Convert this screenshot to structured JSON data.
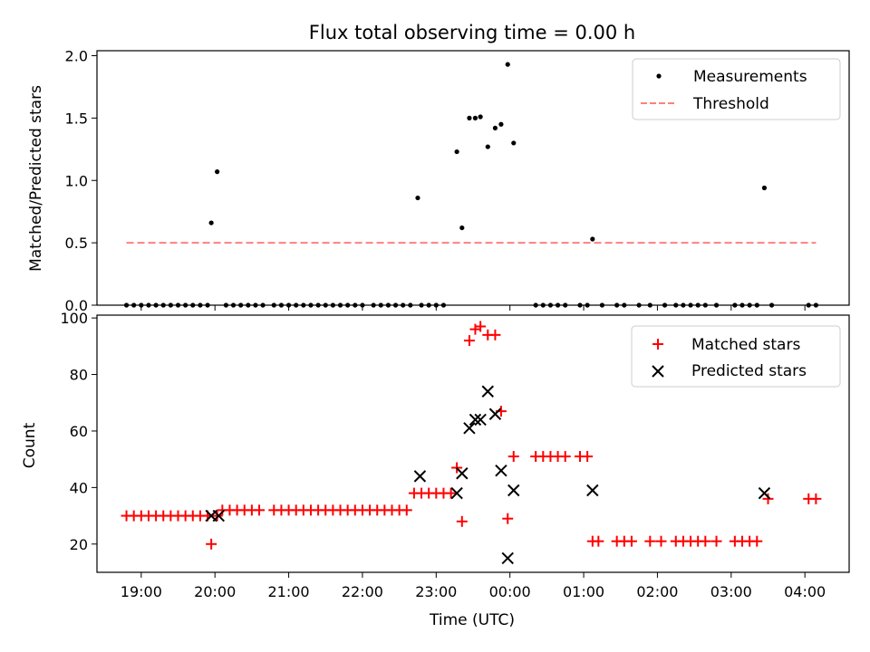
{
  "chart_data": [
    {
      "type": "scatter",
      "title": "Flux total observing time = 0.00 h",
      "xlabel": "",
      "ylabel": "Matched/Predicted stars",
      "ylim": [
        0,
        2.04
      ],
      "yticks": [
        "0.0",
        "0.5",
        "1.0",
        "1.5",
        "2.0"
      ],
      "ytick_values": [
        0,
        0.5,
        1.0,
        1.5,
        2.0
      ],
      "legend_position": "top-right",
      "grid": false,
      "series": [
        {
          "name": "Measurements",
          "marker": "dot",
          "color": "#000000",
          "x": [
            18.8,
            18.9,
            19.0,
            19.1,
            19.2,
            19.3,
            19.4,
            19.5,
            19.6,
            19.7,
            19.8,
            19.9,
            19.95,
            20.03,
            20.15,
            20.25,
            20.35,
            20.45,
            20.55,
            20.65,
            20.8,
            20.9,
            21.0,
            21.1,
            21.2,
            21.3,
            21.4,
            21.5,
            21.6,
            21.7,
            21.8,
            21.9,
            22.0,
            22.15,
            22.25,
            22.35,
            22.45,
            22.55,
            22.65,
            22.75,
            22.8,
            22.9,
            23.0,
            23.1,
            23.28,
            23.35,
            23.45,
            23.53,
            23.6,
            23.7,
            23.8,
            23.88,
            23.97,
            24.05,
            24.35,
            24.45,
            24.55,
            24.65,
            24.75,
            24.95,
            25.05,
            25.12,
            25.25,
            25.45,
            25.55,
            25.75,
            25.9,
            26.1,
            26.25,
            26.35,
            26.45,
            26.55,
            26.65,
            26.8,
            27.05,
            27.15,
            27.25,
            27.35,
            27.45,
            27.55,
            28.05,
            28.15
          ],
          "y": [
            0,
            0,
            0,
            0,
            0,
            0,
            0,
            0,
            0,
            0,
            0,
            0,
            0.66,
            1.07,
            0,
            0,
            0,
            0,
            0,
            0,
            0,
            0,
            0,
            0,
            0,
            0,
            0,
            0,
            0,
            0,
            0,
            0,
            0,
            0,
            0,
            0,
            0,
            0,
            0,
            0.86,
            0,
            0,
            0,
            0,
            1.23,
            0.62,
            1.5,
            1.5,
            1.51,
            1.27,
            1.42,
            1.45,
            1.93,
            1.3,
            0,
            0,
            0,
            0,
            0,
            0,
            0,
            0.53,
            0,
            0,
            0,
            0,
            0,
            0,
            0,
            0,
            0,
            0,
            0,
            0,
            0,
            0,
            0,
            0,
            0.94,
            0,
            0,
            0
          ]
        },
        {
          "name": "Threshold",
          "marker": "dashed-line",
          "color": "#ff7f7f",
          "x": [
            18.8,
            28.15
          ],
          "y": [
            0.5,
            0.5
          ]
        }
      ]
    },
    {
      "type": "scatter",
      "title": "",
      "xlabel": "Time (UTC)",
      "ylabel": "Count",
      "ylim": [
        10,
        101
      ],
      "yticks": [
        "20",
        "40",
        "60",
        "80",
        "100"
      ],
      "ytick_values": [
        20,
        40,
        60,
        80,
        100
      ],
      "xlim": [
        18.4,
        28.6
      ],
      "xticks": [
        "19:00",
        "20:00",
        "21:00",
        "22:00",
        "23:00",
        "00:00",
        "01:00",
        "02:00",
        "03:00",
        "04:00"
      ],
      "xtick_values": [
        19,
        20,
        21,
        22,
        23,
        24,
        25,
        26,
        27,
        28
      ],
      "legend_position": "top-right",
      "grid": false,
      "series": [
        {
          "name": "Matched stars",
          "marker": "plus",
          "color": "#ff0000",
          "x": [
            18.8,
            18.9,
            19.0,
            19.1,
            19.2,
            19.3,
            19.4,
            19.5,
            19.6,
            19.7,
            19.8,
            19.9,
            19.95,
            20.03,
            20.1,
            20.2,
            20.3,
            20.4,
            20.5,
            20.6,
            20.8,
            20.9,
            21.0,
            21.1,
            21.2,
            21.3,
            21.4,
            21.5,
            21.6,
            21.7,
            21.8,
            21.9,
            22.0,
            22.1,
            22.2,
            22.3,
            22.4,
            22.5,
            22.6,
            22.7,
            22.8,
            22.9,
            23.0,
            23.1,
            23.2,
            23.28,
            23.35,
            23.45,
            23.53,
            23.6,
            23.7,
            23.8,
            23.88,
            23.97,
            24.05,
            24.35,
            24.45,
            24.55,
            24.65,
            24.75,
            24.95,
            25.05,
            25.12,
            25.2,
            25.45,
            25.55,
            25.65,
            25.9,
            26.05,
            26.25,
            26.35,
            26.45,
            26.55,
            26.65,
            26.8,
            27.05,
            27.15,
            27.25,
            27.35,
            27.5,
            28.05,
            28.15
          ],
          "y": [
            30,
            30,
            30,
            30,
            30,
            30,
            30,
            30,
            30,
            30,
            30,
            30,
            20,
            30,
            32,
            32,
            32,
            32,
            32,
            32,
            32,
            32,
            32,
            32,
            32,
            32,
            32,
            32,
            32,
            32,
            32,
            32,
            32,
            32,
            32,
            32,
            32,
            32,
            32,
            38,
            38,
            38,
            38,
            38,
            38,
            47,
            28,
            92,
            96,
            97,
            94,
            94,
            67,
            29,
            51,
            51,
            51,
            51,
            51,
            51,
            51,
            51,
            21,
            21,
            21,
            21,
            21,
            21,
            21,
            21,
            21,
            21,
            21,
            21,
            21,
            21,
            21,
            21,
            21,
            36,
            36,
            36
          ]
        },
        {
          "name": "Predicted stars",
          "marker": "x",
          "color": "#000000",
          "x": [
            19.95,
            20.05,
            22.78,
            23.28,
            23.35,
            23.45,
            23.53,
            23.6,
            23.7,
            23.8,
            23.88,
            23.97,
            24.05,
            25.12,
            27.45
          ],
          "y": [
            30,
            30,
            44,
            38,
            45,
            61,
            64,
            64,
            74,
            66,
            46,
            15,
            39,
            39,
            38
          ]
        }
      ]
    }
  ]
}
